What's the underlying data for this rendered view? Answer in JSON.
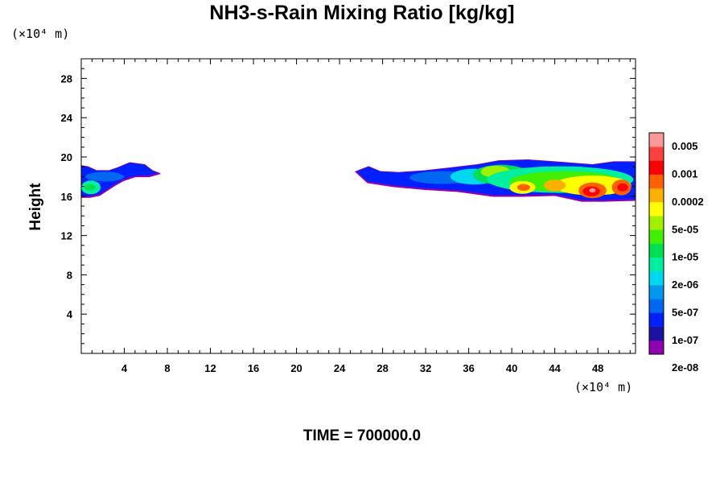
{
  "chart_data": {
    "type": "heatmap",
    "title": "NH3-s-Rain Mixing Ratio [kg/kg]",
    "ylabel": "Height",
    "x_unit_label": "(×10⁴ m)",
    "y_unit_label": "(×10⁴ m)",
    "xlim": [
      0,
      51.5
    ],
    "ylim": [
      0,
      30
    ],
    "x_ticks": [
      4,
      8,
      12,
      16,
      20,
      24,
      28,
      32,
      36,
      40,
      44,
      48
    ],
    "y_ticks": [
      4,
      8,
      12,
      16,
      20,
      24,
      28
    ],
    "annotation": "TIME = 700000.0",
    "colorbar": {
      "labels": [
        "0.005",
        "0.001",
        "0.0002",
        "5e-05",
        "1e-05",
        "2e-06",
        "5e-07",
        "1e-07",
        "2e-08"
      ],
      "colors": [
        "#9000b0",
        "#1c12a0",
        "#0020ff",
        "#0068f0",
        "#0098f0",
        "#00d8f0",
        "#00f0a0",
        "#00e050",
        "#40f000",
        "#a0f000",
        "#ffff00",
        "#ffb000",
        "#ff6000",
        "#ff0000",
        "#ff4040",
        "#ff9999"
      ]
    },
    "regions": [
      {
        "outline": [
          [
            0,
            15.9
          ],
          [
            0.8,
            15.9
          ],
          [
            1.7,
            16.1
          ],
          [
            2.4,
            16.6
          ],
          [
            3.1,
            17.1
          ],
          [
            3.9,
            17.6
          ],
          [
            5.0,
            18.0
          ],
          [
            6.3,
            18.0
          ],
          [
            7.3,
            18.3
          ],
          [
            6.6,
            18.6
          ],
          [
            5.9,
            19.2
          ],
          [
            4.5,
            19.4
          ],
          [
            3.4,
            18.9
          ],
          [
            2.6,
            18.6
          ],
          [
            1.4,
            18.6
          ],
          [
            0.6,
            19.0
          ],
          [
            0,
            19.1
          ]
        ],
        "blobs": [
          {
            "x": 2.2,
            "y": 18.0,
            "rx": 1.8,
            "ry": 0.5,
            "level": 3
          },
          {
            "x": 4.7,
            "y": 18.5,
            "rx": 1.3,
            "ry": 0.45,
            "level": 2
          },
          {
            "x": 0.9,
            "y": 16.9,
            "rx": 0.9,
            "ry": 0.7,
            "level": 6
          },
          {
            "x": 0.8,
            "y": 16.9,
            "rx": 0.5,
            "ry": 0.35,
            "level": 7
          }
        ]
      },
      {
        "outline": [
          [
            26.6,
            17.4
          ],
          [
            29.0,
            17.0
          ],
          [
            32.0,
            16.7
          ],
          [
            35.0,
            16.5
          ],
          [
            37.0,
            16.2
          ],
          [
            38.3,
            16.0
          ],
          [
            41.0,
            16.0
          ],
          [
            44.0,
            16.1
          ],
          [
            46.5,
            15.5
          ],
          [
            48.5,
            15.5
          ],
          [
            51.5,
            15.6
          ],
          [
            51.5,
            19.5
          ],
          [
            49.5,
            19.5
          ],
          [
            47.5,
            19.2
          ],
          [
            44.0,
            19.5
          ],
          [
            41.5,
            19.7
          ],
          [
            38.8,
            19.6
          ],
          [
            36.8,
            19.2
          ],
          [
            34.5,
            18.9
          ],
          [
            32.0,
            18.6
          ],
          [
            29.5,
            18.4
          ],
          [
            27.8,
            18.5
          ],
          [
            26.7,
            19.0
          ],
          [
            25.5,
            18.5
          ]
        ],
        "blobs": [
          {
            "x": 33.5,
            "y": 17.9,
            "rx": 3.0,
            "ry": 0.65,
            "level": 3
          },
          {
            "x": 36.5,
            "y": 18.0,
            "rx": 2.2,
            "ry": 0.8,
            "level": 5
          },
          {
            "x": 39.0,
            "y": 18.2,
            "rx": 2.6,
            "ry": 1.0,
            "level": 7
          },
          {
            "x": 38.5,
            "y": 18.5,
            "rx": 1.4,
            "ry": 0.6,
            "level": 9
          },
          {
            "x": 44.5,
            "y": 17.7,
            "rx": 6.8,
            "ry": 1.35,
            "level": 6
          },
          {
            "x": 45.0,
            "y": 17.5,
            "rx": 5.2,
            "ry": 1.05,
            "level": 8
          },
          {
            "x": 47.5,
            "y": 17.1,
            "rx": 3.6,
            "ry": 1.0,
            "level": 10
          },
          {
            "x": 41.0,
            "y": 16.9,
            "rx": 1.2,
            "ry": 0.65,
            "level": 10
          },
          {
            "x": 41.1,
            "y": 16.9,
            "rx": 0.6,
            "ry": 0.35,
            "level": 12
          },
          {
            "x": 44.0,
            "y": 17.1,
            "rx": 1.0,
            "ry": 0.6,
            "level": 11
          },
          {
            "x": 47.5,
            "y": 16.6,
            "rx": 1.3,
            "ry": 0.8,
            "level": 12
          },
          {
            "x": 47.4,
            "y": 16.5,
            "rx": 0.8,
            "ry": 0.5,
            "level": 13
          },
          {
            "x": 47.5,
            "y": 16.6,
            "rx": 0.3,
            "ry": 0.22,
            "level": 15
          },
          {
            "x": 50.2,
            "y": 16.9,
            "rx": 0.9,
            "ry": 0.8,
            "level": 12
          },
          {
            "x": 50.3,
            "y": 16.9,
            "rx": 0.5,
            "ry": 0.4,
            "level": 13
          }
        ]
      }
    ]
  }
}
